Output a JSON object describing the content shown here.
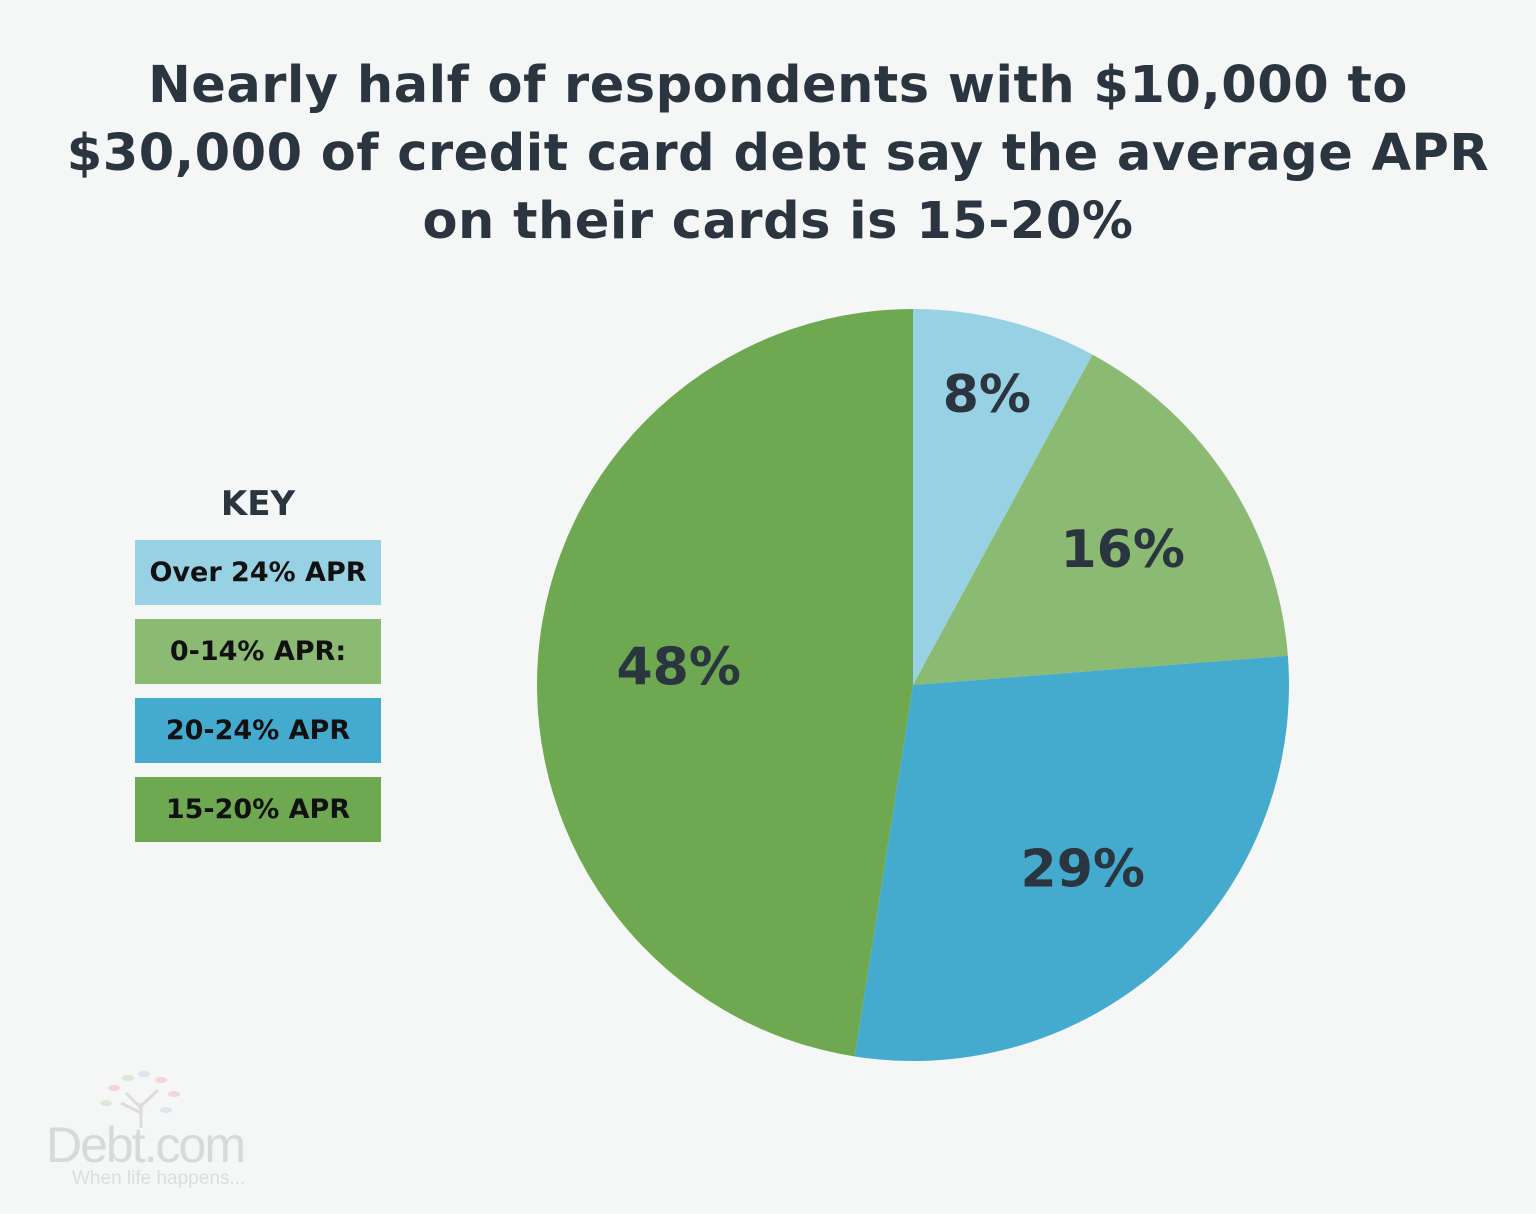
{
  "chart_data": {
    "type": "pie",
    "title": "Nearly half of respondents with $10,000 to $30,000 of credit card debt say the average APR on their cards is 15-20%",
    "legend_title": "KEY",
    "legend_placement": "left",
    "slices": [
      {
        "name": "Over 24% APR",
        "value": 8,
        "label": "8%",
        "color": "#98d1e3"
      },
      {
        "name": "0-14% APR:",
        "value": 16,
        "label": "16%",
        "color": "#8bba72"
      },
      {
        "name": "20-24% APR",
        "value": 29,
        "label": "29%",
        "color": "#44abcf"
      },
      {
        "name": "15-20% APR",
        "value": 48,
        "label": "48%",
        "color": "#6ea851"
      }
    ]
  },
  "branding": {
    "logo": "Debt.com",
    "tagline": "When life happens..."
  },
  "colors": {
    "background": "#f5f6f6",
    "text": "#2a3540"
  }
}
